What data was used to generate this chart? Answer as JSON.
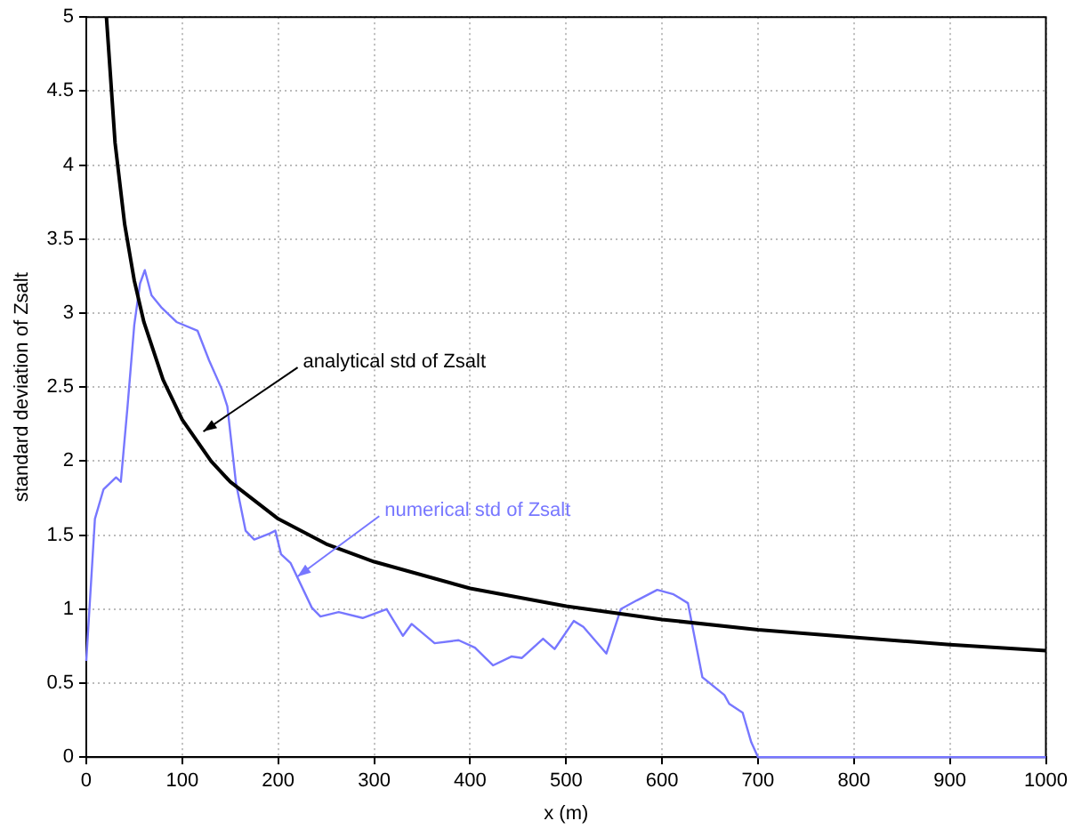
{
  "chart_data": {
    "type": "line",
    "xlabel": "x (m)",
    "ylabel": "standard deviation of Zsalt",
    "xlim": [
      0,
      1000
    ],
    "ylim": [
      0,
      5
    ],
    "xticks": [
      0,
      100,
      200,
      300,
      400,
      500,
      600,
      700,
      800,
      900,
      1000
    ],
    "yticks": [
      0,
      0.5,
      1,
      1.5,
      2,
      2.5,
      3,
      3.5,
      4,
      4.5,
      5
    ],
    "grid": true,
    "legend": false,
    "marker": "none",
    "line_style": "solid",
    "series": [
      {
        "color": "#000000",
        "x": [
          21,
          30,
          40,
          50,
          60,
          80,
          100,
          130,
          150,
          200,
          250,
          300,
          400,
          500,
          600,
          700,
          800,
          900,
          1000
        ],
        "values": [
          5.0,
          4.15,
          3.6,
          3.22,
          2.94,
          2.55,
          2.28,
          2.0,
          1.86,
          1.61,
          1.44,
          1.32,
          1.14,
          1.02,
          0.93,
          0.86,
          0.81,
          0.76,
          0.72
        ]
      },
      {
        "color": "#7777ff",
        "x": [
          0,
          9,
          18,
          31,
          36,
          43,
          50,
          56,
          61,
          68,
          78,
          94,
          116,
          128,
          141,
          147,
          156,
          166,
          175,
          191,
          197,
          203,
          213,
          235,
          244,
          263,
          288,
          313,
          330,
          339,
          363,
          388,
          405,
          424,
          443,
          454,
          476,
          488,
          508,
          518,
          542,
          557,
          574,
          595,
          612,
          627,
          642,
          665,
          670,
          684,
          693,
          700,
          800,
          900,
          1000
        ],
        "values": [
          0.65,
          1.61,
          1.81,
          1.89,
          1.86,
          2.37,
          2.92,
          3.2,
          3.29,
          3.12,
          3.04,
          2.94,
          2.88,
          2.68,
          2.49,
          2.37,
          1.85,
          1.53,
          1.47,
          1.51,
          1.53,
          1.37,
          1.31,
          1.01,
          0.95,
          0.98,
          0.94,
          1.0,
          0.82,
          0.9,
          0.77,
          0.79,
          0.74,
          0.62,
          0.68,
          0.67,
          0.8,
          0.73,
          0.92,
          0.88,
          0.7,
          1.0,
          1.06,
          1.13,
          1.1,
          1.04,
          0.54,
          0.42,
          0.36,
          0.3,
          0.1,
          0,
          0,
          0,
          0
        ]
      }
    ],
    "annotations": [
      {
        "text": "analytical std of Zsalt",
        "x": 122,
        "y": 2.2
      },
      {
        "text": "numerical std of Zsalt",
        "x": 220,
        "y": 1.22
      }
    ]
  }
}
